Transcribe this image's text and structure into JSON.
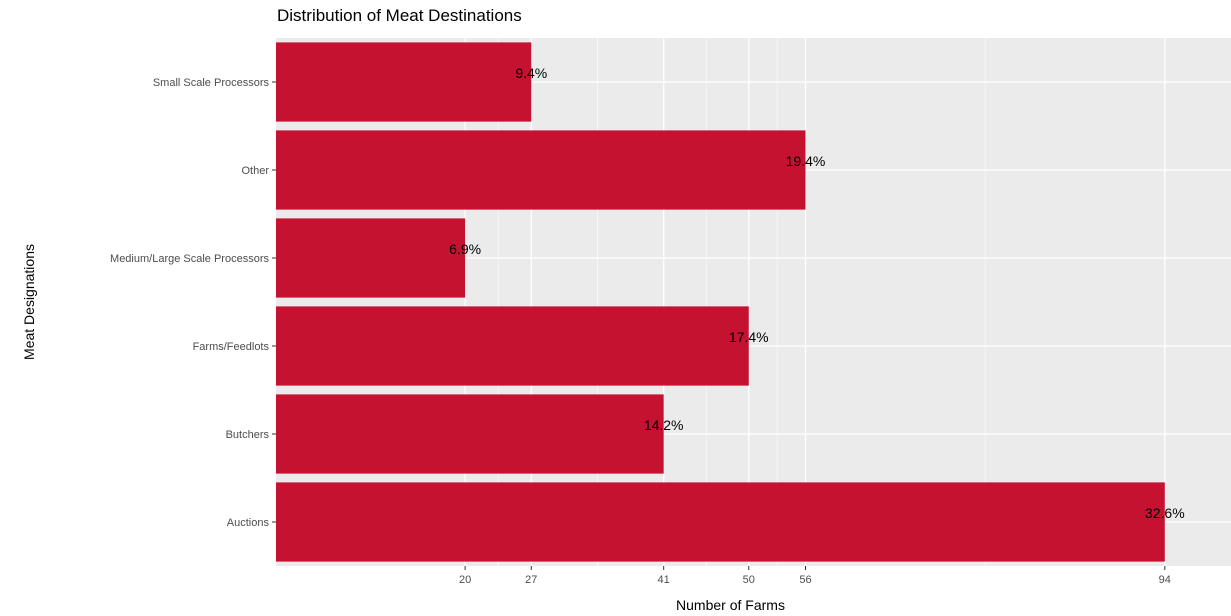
{
  "chart_data": {
    "type": "bar",
    "orientation": "horizontal",
    "title": "Distribution of Meat Destinations",
    "xlabel": "Number of Farms",
    "ylabel": "Meat Designations",
    "categories": [
      "Auctions",
      "Butchers",
      "Farms/Feedlots",
      "Medium/Large Scale Processors",
      "Other",
      "Small Scale Processors"
    ],
    "values": [
      94,
      41,
      50,
      20,
      56,
      27
    ],
    "data_labels": [
      "32.6%",
      "14.2%",
      "17.4%",
      "6.9%",
      "19.4%",
      "9.4%"
    ],
    "x_ticks": [
      "20",
      "27",
      "41",
      "50",
      "56",
      "94"
    ],
    "xlim": [
      0,
      101
    ],
    "bar_color": "#C41230",
    "panel_background": "#EBEBEB",
    "gridline_color": "#FFFFFF",
    "grid": true,
    "legend": "none"
  }
}
